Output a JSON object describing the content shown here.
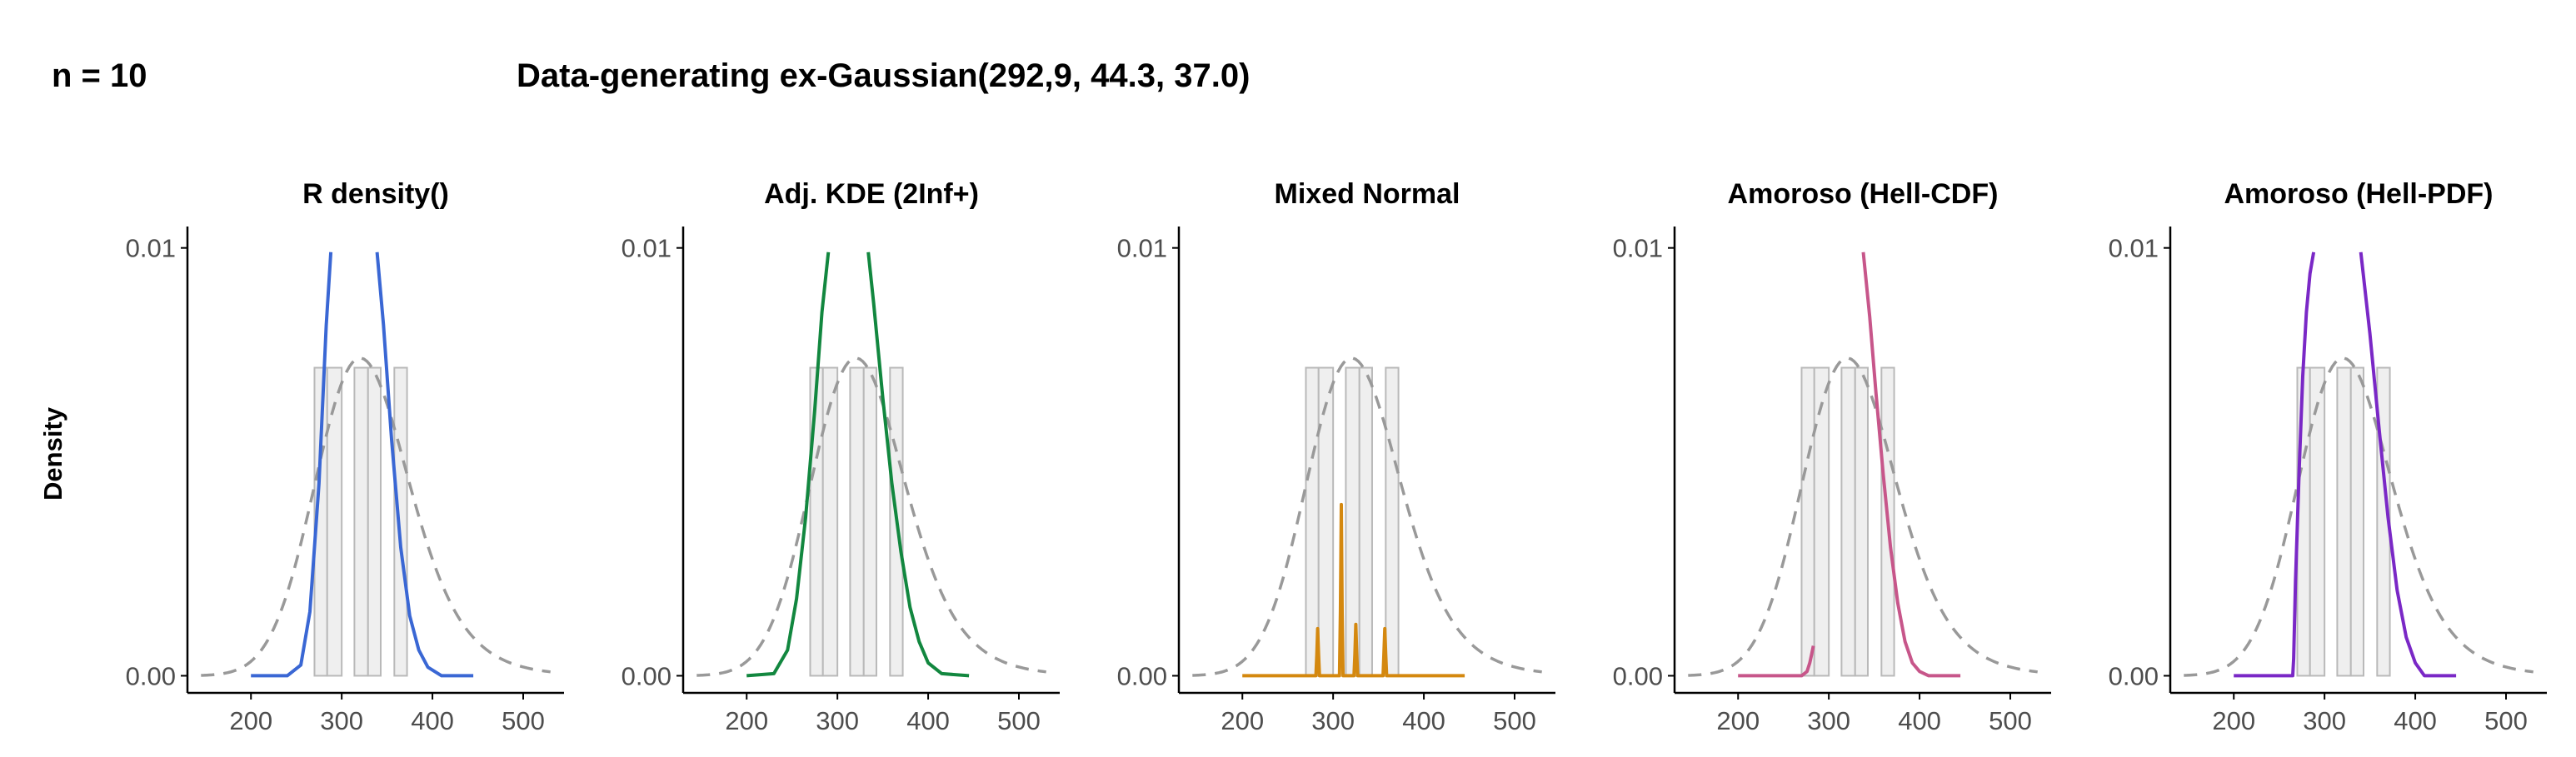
{
  "figure": {
    "left_title": "n = 10",
    "main_title": "Data-generating ex-Gaussian(292,9, 44.3, 37.0)",
    "ylabel": "Density"
  },
  "styles": {
    "hist_fill": "#efefef",
    "hist_stroke": "#b9b9b9",
    "reference_curve_color": "#999999",
    "axis_color": "#000000"
  },
  "chart_data": [
    {
      "type": "line",
      "title": "R density()",
      "color": "#3a67d4",
      "xlim": [
        130,
        545
      ],
      "ylim": [
        -0.0004,
        0.0105
      ],
      "x_ticks": [
        200,
        300,
        400,
        500
      ],
      "x_tick_labels": [
        "200",
        "300",
        "400",
        "500"
      ],
      "y_ticks": [
        0,
        0.01
      ],
      "y_tick_labels": [
        "0.00",
        "0.01"
      ],
      "histogram": {
        "bin_edges": [
          270,
          284,
          300,
          314,
          329,
          343,
          358,
          372
        ],
        "densities": [
          0.0072,
          0.0072,
          0,
          0.0072,
          0.0072,
          0,
          0.0072
        ]
      },
      "reference_curve": {
        "name": "ex-Gaussian(292.9, 44.3, 37.0)",
        "mu": 292.9,
        "sigma": 44.3,
        "tau": 37.0
      },
      "estimate_segments": [
        {
          "x": [
            200,
            240,
            255,
            265,
            275,
            283,
            288
          ],
          "y": [
            0,
            0,
            0.00025,
            0.0015,
            0.0045,
            0.0082,
            0.0099
          ]
        },
        {
          "x": [
            339,
            346,
            355,
            365,
            375,
            385,
            395,
            410,
            445
          ],
          "y": [
            0.0099,
            0.0082,
            0.0055,
            0.003,
            0.0014,
            0.0006,
            0.0002,
            0,
            0
          ]
        }
      ]
    },
    {
      "type": "line",
      "title": "Adj. KDE (2Inf+)",
      "color": "#12873f",
      "xlim": [
        130,
        545
      ],
      "ylim": [
        -0.0004,
        0.0105
      ],
      "x_ticks": [
        200,
        300,
        400,
        500
      ],
      "x_tick_labels": [
        "200",
        "300",
        "400",
        "500"
      ],
      "y_ticks": [
        0,
        0.01
      ],
      "y_tick_labels": [
        "0.00",
        "0.01"
      ],
      "histogram": {
        "bin_edges": [
          270,
          284,
          300,
          314,
          329,
          343,
          358,
          372
        ],
        "densities": [
          0.0072,
          0.0072,
          0,
          0.0072,
          0.0072,
          0,
          0.0072
        ]
      },
      "reference_curve": {
        "name": "ex-Gaussian(292.9, 44.3, 37.0)",
        "mu": 292.9,
        "sigma": 44.3,
        "tau": 37.0
      },
      "estimate_segments": [
        {
          "x": [
            200,
            230,
            245,
            255,
            265,
            275,
            283,
            290
          ],
          "y": [
            0,
            5e-05,
            0.0006,
            0.0018,
            0.0037,
            0.0062,
            0.0085,
            0.0099
          ]
        },
        {
          "x": [
            334,
            340,
            350,
            360,
            370,
            380,
            390,
            400,
            415,
            445
          ],
          "y": [
            0.0099,
            0.0087,
            0.0065,
            0.0045,
            0.0029,
            0.0016,
            0.0008,
            0.0003,
            5e-05,
            0
          ]
        }
      ]
    },
    {
      "type": "line",
      "title": "Mixed Normal",
      "color": "#d4880f",
      "xlim": [
        130,
        545
      ],
      "ylim": [
        -0.0004,
        0.0105
      ],
      "x_ticks": [
        200,
        300,
        400,
        500
      ],
      "x_tick_labels": [
        "200",
        "300",
        "400",
        "500"
      ],
      "y_ticks": [
        0,
        0.01
      ],
      "y_tick_labels": [
        "0.00",
        "0.01"
      ],
      "histogram": {
        "bin_edges": [
          270,
          284,
          300,
          314,
          329,
          343,
          358,
          372
        ],
        "densities": [
          0.0072,
          0.0072,
          0,
          0.0072,
          0.0072,
          0,
          0.0072
        ]
      },
      "reference_curve": {
        "name": "ex-Gaussian(292.9, 44.3, 37.0)",
        "mu": 292.9,
        "sigma": 44.3,
        "tau": 37.0
      },
      "estimate_segments": [
        {
          "x": [
            200,
            281,
            282,
            283,
            284,
            285,
            307,
            308,
            309,
            310,
            311,
            323,
            324,
            325,
            326,
            327,
            355,
            356,
            357,
            358,
            359,
            445
          ],
          "y": [
            0,
            0,
            0.0005,
            0.0011,
            0.0005,
            0,
            0,
            0.0015,
            0.004,
            0.0015,
            0,
            0,
            0.0005,
            0.0012,
            0.0005,
            0,
            0,
            0.0005,
            0.0011,
            0.0005,
            0,
            0
          ]
        }
      ]
    },
    {
      "type": "line",
      "title": "Amoroso (Hell-CDF)",
      "color": "#c7568a",
      "xlim": [
        130,
        545
      ],
      "ylim": [
        -0.0004,
        0.0105
      ],
      "x_ticks": [
        200,
        300,
        400,
        500
      ],
      "x_tick_labels": [
        "200",
        "300",
        "400",
        "500"
      ],
      "y_ticks": [
        0,
        0.01
      ],
      "y_tick_labels": [
        "0.00",
        "0.01"
      ],
      "histogram": {
        "bin_edges": [
          270,
          284,
          300,
          314,
          329,
          343,
          358,
          372
        ],
        "densities": [
          0.0072,
          0.0072,
          0,
          0.0072,
          0.0072,
          0,
          0.0072
        ]
      },
      "reference_curve": {
        "name": "ex-Gaussian(292.9, 44.3, 37.0)",
        "mu": 292.9,
        "sigma": 44.3,
        "tau": 37.0
      },
      "estimate_segments": [
        {
          "x": [
            200,
            270,
            276,
            279,
            281,
            283
          ],
          "y": [
            0,
            0,
            0.0001,
            0.0003,
            0.0005,
            0.0007
          ]
        },
        {
          "x": [
            338,
            345,
            352,
            360,
            368,
            376,
            384,
            392,
            400,
            410,
            445
          ],
          "y": [
            0.0099,
            0.0084,
            0.0066,
            0.0047,
            0.003,
            0.0017,
            0.0008,
            0.0003,
            0.0001,
            0,
            0
          ]
        }
      ]
    },
    {
      "type": "line",
      "title": "Amoroso (Hell-PDF)",
      "color": "#7a28c6",
      "xlim": [
        130,
        545
      ],
      "ylim": [
        -0.0004,
        0.0105
      ],
      "x_ticks": [
        200,
        300,
        400,
        500
      ],
      "x_tick_labels": [
        "200",
        "300",
        "400",
        "500"
      ],
      "y_ticks": [
        0,
        0.01
      ],
      "y_tick_labels": [
        "0.00",
        "0.01"
      ],
      "histogram": {
        "bin_edges": [
          270,
          284,
          300,
          314,
          329,
          343,
          358,
          372
        ],
        "densities": [
          0.0072,
          0.0072,
          0,
          0.0072,
          0.0072,
          0,
          0.0072
        ]
      },
      "reference_curve": {
        "name": "ex-Gaussian(292.9, 44.3, 37.0)",
        "mu": 292.9,
        "sigma": 44.3,
        "tau": 37.0
      },
      "estimate_segments": [
        {
          "x": [
            200,
            265,
            266,
            268,
            272,
            276,
            280,
            284,
            288
          ],
          "y": [
            0,
            0,
            0.0004,
            0.0022,
            0.0048,
            0.007,
            0.0085,
            0.0094,
            0.0099
          ]
        },
        {
          "x": [
            340,
            350,
            360,
            370,
            380,
            390,
            400,
            410,
            445
          ],
          "y": [
            0.0099,
            0.008,
            0.0058,
            0.0037,
            0.002,
            0.0009,
            0.0003,
            0,
            0
          ]
        }
      ]
    }
  ]
}
